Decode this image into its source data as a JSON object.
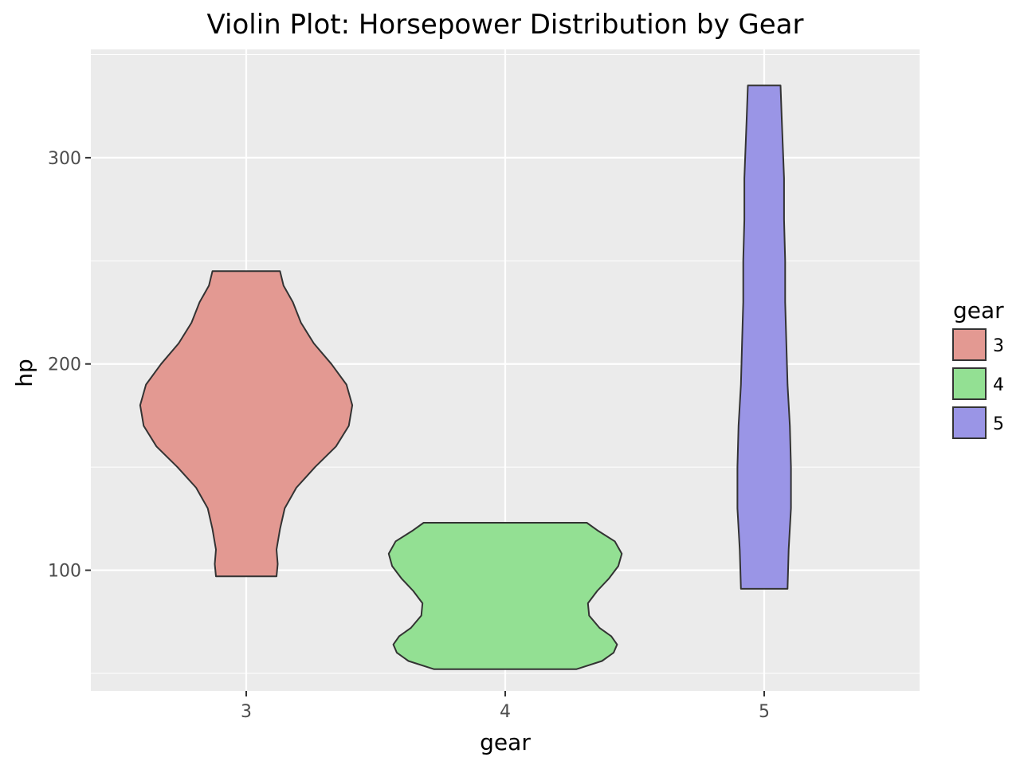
{
  "chart_data": {
    "type": "violin",
    "title": "Violin Plot: Horsepower Distribution by Gear",
    "xlabel": "gear",
    "ylabel": "hp",
    "categories": [
      "3",
      "4",
      "5"
    ],
    "ylim": [
      41.5,
      352.5
    ],
    "y_ticks": [
      100,
      200,
      300
    ],
    "grid": true,
    "legend": {
      "title": "gear",
      "position": "right",
      "entries": [
        "3",
        "4",
        "5"
      ]
    },
    "colors": {
      "3": "#e39992",
      "4": "#93e093",
      "5": "#9a95e6"
    },
    "series": [
      {
        "category": "3",
        "min": 97,
        "max": 245,
        "density": [
          [
            97,
            0.26
          ],
          [
            103,
            0.27
          ],
          [
            110,
            0.26
          ],
          [
            120,
            0.29
          ],
          [
            130,
            0.33
          ],
          [
            140,
            0.43
          ],
          [
            150,
            0.59
          ],
          [
            160,
            0.77
          ],
          [
            170,
            0.88
          ],
          [
            180,
            0.91
          ],
          [
            190,
            0.86
          ],
          [
            200,
            0.73
          ],
          [
            210,
            0.58
          ],
          [
            220,
            0.47
          ],
          [
            230,
            0.4
          ],
          [
            238,
            0.32
          ],
          [
            245,
            0.29
          ]
        ]
      },
      {
        "category": "4",
        "min": 52,
        "max": 123,
        "density": [
          [
            52,
            0.61
          ],
          [
            56,
            0.83
          ],
          [
            60,
            0.93
          ],
          [
            64,
            0.96
          ],
          [
            68,
            0.91
          ],
          [
            72,
            0.81
          ],
          [
            78,
            0.72
          ],
          [
            84,
            0.71
          ],
          [
            90,
            0.79
          ],
          [
            96,
            0.89
          ],
          [
            102,
            0.97
          ],
          [
            108,
            1.0
          ],
          [
            114,
            0.94
          ],
          [
            119,
            0.8
          ],
          [
            123,
            0.7
          ]
        ]
      },
      {
        "category": "5",
        "min": 91,
        "max": 335,
        "density": [
          [
            91,
            0.2
          ],
          [
            110,
            0.21
          ],
          [
            130,
            0.23
          ],
          [
            150,
            0.23
          ],
          [
            170,
            0.22
          ],
          [
            190,
            0.2
          ],
          [
            210,
            0.19
          ],
          [
            230,
            0.18
          ],
          [
            250,
            0.18
          ],
          [
            270,
            0.17
          ],
          [
            290,
            0.17
          ],
          [
            305,
            0.16
          ],
          [
            320,
            0.15
          ],
          [
            335,
            0.14
          ]
        ]
      }
    ]
  }
}
